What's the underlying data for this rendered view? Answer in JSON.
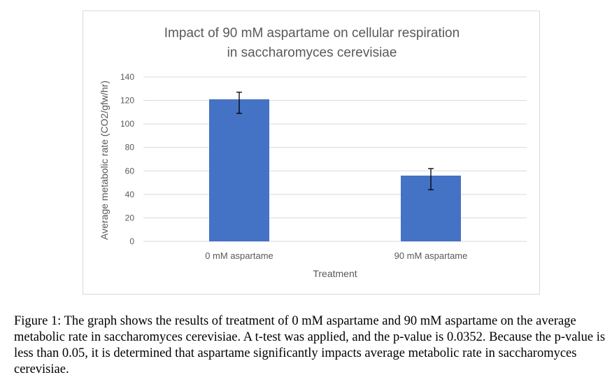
{
  "chart_data": {
    "type": "bar",
    "title_lines": [
      "Impact of 90 mM aspartame on cellular respiration",
      "in saccharomyces cerevisiae"
    ],
    "xlabel": "Treatment",
    "ylabel": "Average metabolic rate (CO2/gfw/hr)",
    "categories": [
      "0 mM aspartame",
      "90 mM aspartame"
    ],
    "values": [
      121,
      56
    ],
    "error_low": [
      109,
      44
    ],
    "error_high": [
      127,
      62
    ],
    "ylim": [
      0,
      140
    ],
    "yticks": [
      "0",
      "20",
      "40",
      "60",
      "80",
      "100",
      "120",
      "140"
    ],
    "grid": true,
    "legend": "none",
    "bar_color": "#4472c4",
    "grid_color": "#d9d9d9",
    "text_color": "#595959"
  },
  "caption": "Figure 1: The graph shows the results of treatment of 0 mM aspartame and 90 mM aspartame on the average metabolic rate in saccharomyces cerevisiae. A t-test was applied, and the p-value is 0.0352. Because the p-value is less than 0.05, it is determined that aspartame significantly impacts average metabolic rate in saccharomyces cerevisiae."
}
